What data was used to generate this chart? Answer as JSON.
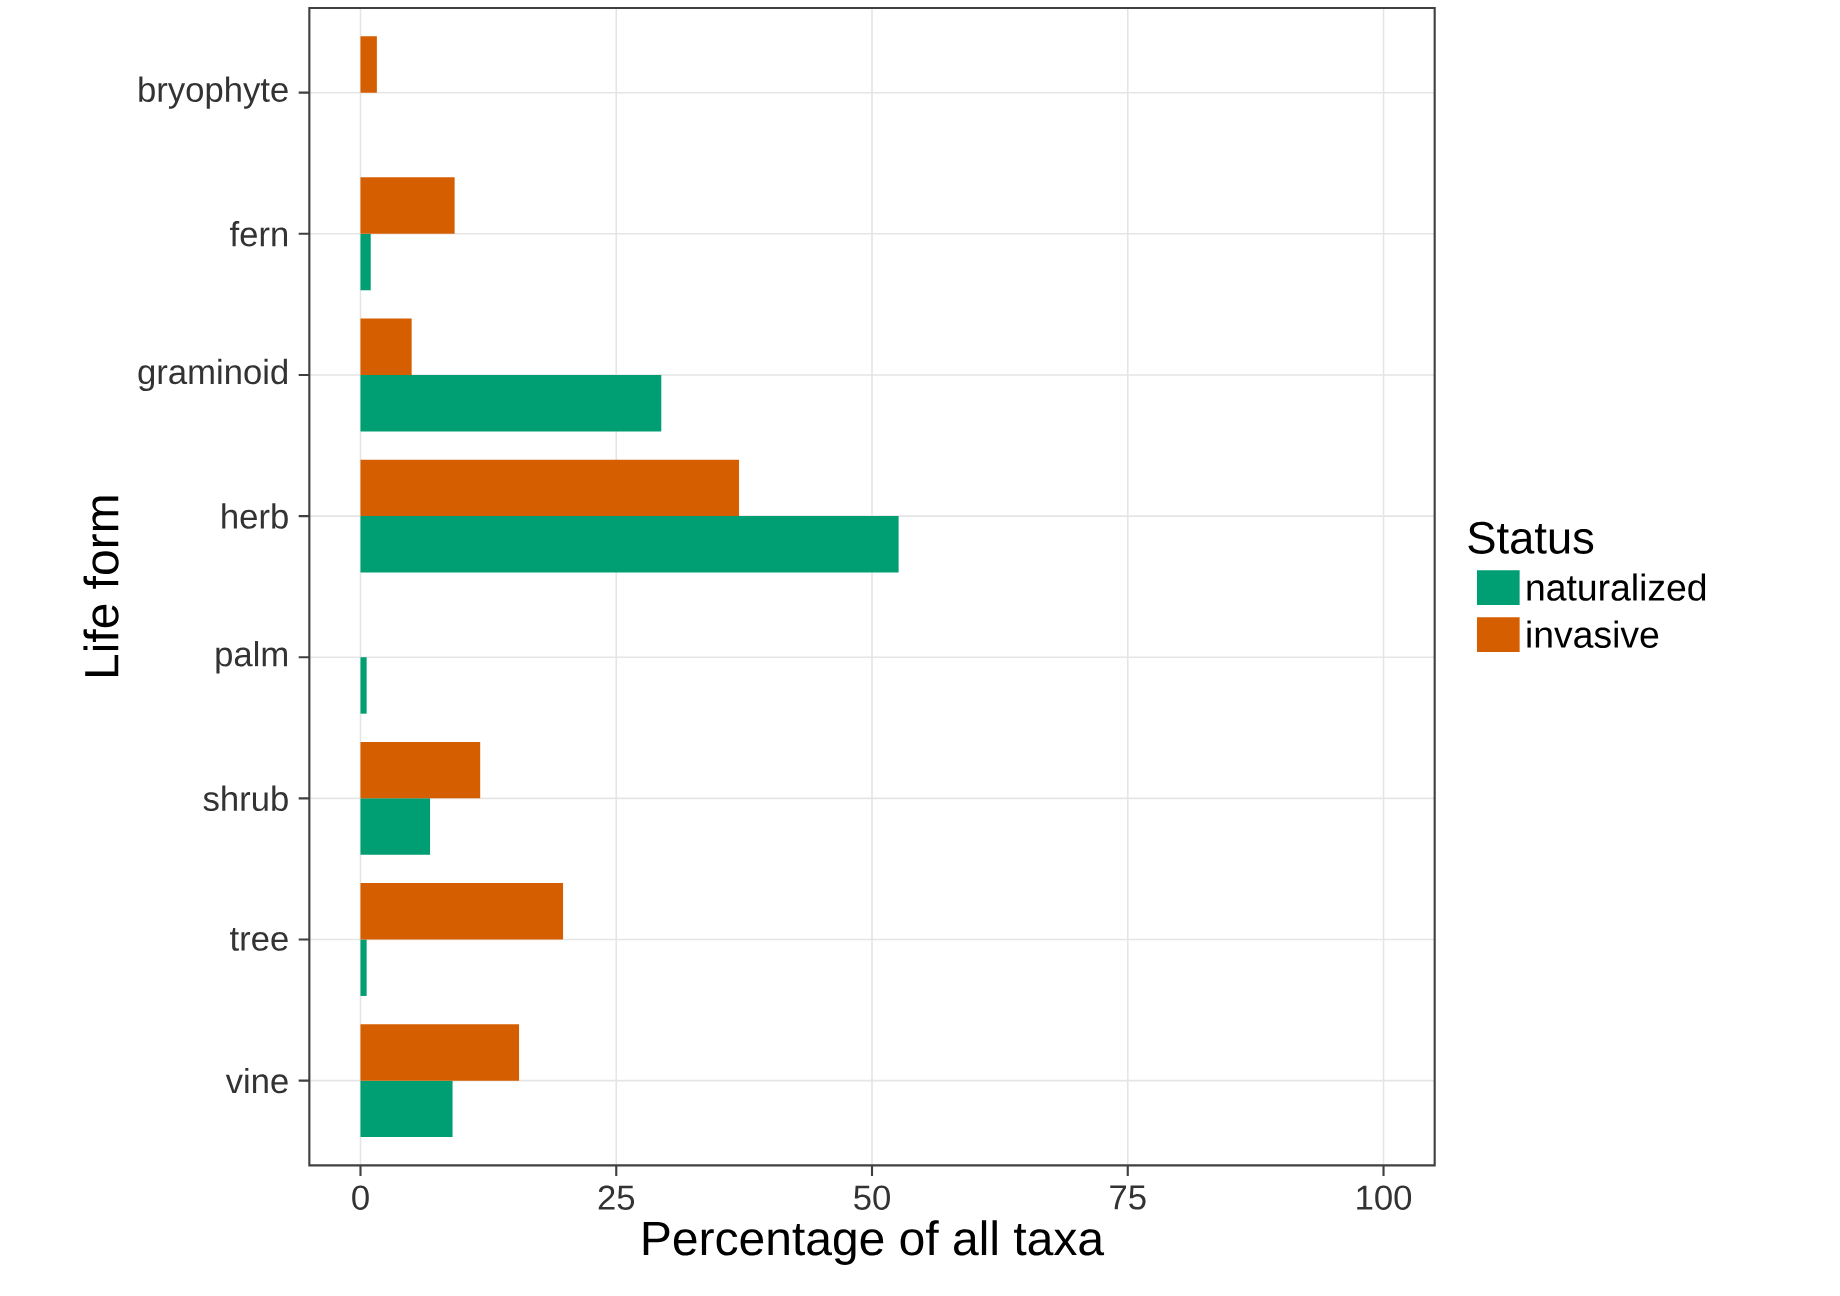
{
  "chart_data": {
    "type": "bar",
    "orientation": "horizontal",
    "xlabel": "Percentage of all taxa",
    "ylabel": "Life form",
    "legend_title": "Status",
    "legend": "right",
    "grid": true,
    "categories": [
      "bryophyte",
      "fern",
      "graminoid",
      "herb",
      "palm",
      "shrub",
      "tree",
      "vine"
    ],
    "series": [
      {
        "name": "naturalized",
        "color": "#009e73",
        "values": [
          null,
          1.0,
          29.4,
          52.6,
          0.6,
          6.8,
          0.6,
          9.0
        ]
      },
      {
        "name": "invasive",
        "color": "#d55e00",
        "values": [
          1.6,
          9.2,
          5.0,
          37.0,
          null,
          11.7,
          19.8,
          15.5
        ]
      }
    ],
    "xlim": [
      -5,
      105
    ],
    "xticks": [
      0,
      25,
      50,
      75,
      100
    ]
  }
}
